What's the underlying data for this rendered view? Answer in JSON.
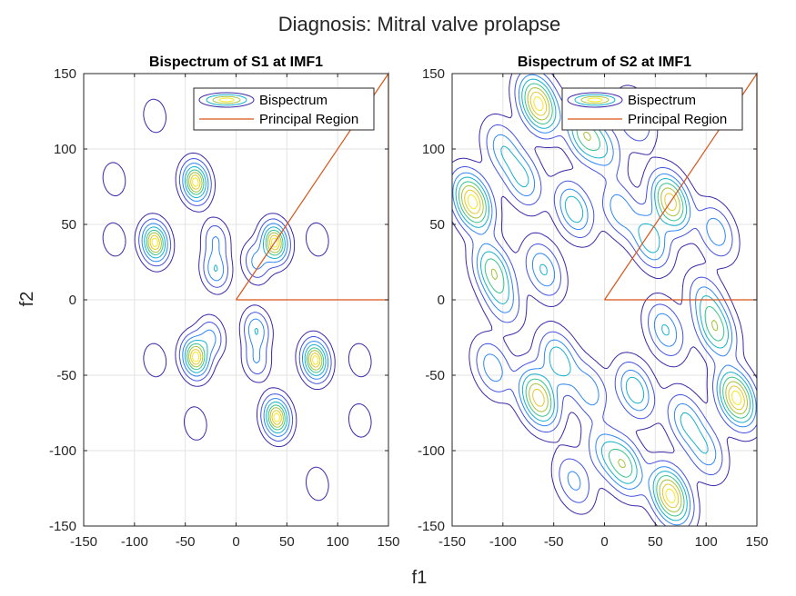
{
  "figure": {
    "suptitle": "Diagnosis: Mitral valve prolapse",
    "xlabel": "f1",
    "ylabel": "f2"
  },
  "chart_data": [
    {
      "type": "contour",
      "title": "Bispectrum of S1 at IMF1",
      "xlim": [
        -150,
        150
      ],
      "ylim": [
        -150,
        150
      ],
      "xticks": [
        -150,
        -100,
        -50,
        0,
        50,
        100,
        150
      ],
      "yticks": [
        -150,
        -100,
        -50,
        0,
        50,
        100,
        150
      ],
      "grid": true,
      "legend": {
        "placement": "top-right",
        "entries": [
          "Bispectrum",
          "Principal Region"
        ]
      },
      "principal_region": [
        [
          0,
          0
        ],
        [
          150,
          150
        ],
        [
          150,
          0
        ],
        [
          0,
          0
        ]
      ],
      "peaks": [
        {
          "x": -40,
          "y": 78,
          "a": 1.0
        },
        {
          "x": -80,
          "y": 38,
          "a": 1.0
        },
        {
          "x": 38,
          "y": 38,
          "a": 1.0
        },
        {
          "x": -40,
          "y": -38,
          "a": 1.0
        },
        {
          "x": 78,
          "y": -40,
          "a": 1.0
        },
        {
          "x": 40,
          "y": -78,
          "a": 1.0
        },
        {
          "x": -20,
          "y": 20,
          "a": 0.45
        },
        {
          "x": 20,
          "y": -20,
          "a": 0.45
        },
        {
          "x": 20,
          "y": 25,
          "a": 0.35
        },
        {
          "x": -25,
          "y": -25,
          "a": 0.35
        },
        {
          "x": -20,
          "y": 40,
          "a": 0.3
        },
        {
          "x": 20,
          "y": -40,
          "a": 0.3
        },
        {
          "x": -120,
          "y": 80,
          "a": 0.15
        },
        {
          "x": -120,
          "y": 40,
          "a": 0.15
        },
        {
          "x": -80,
          "y": 122,
          "a": 0.15
        },
        {
          "x": 80,
          "y": 40,
          "a": 0.15
        },
        {
          "x": 122,
          "y": -40,
          "a": 0.15
        },
        {
          "x": 122,
          "y": -80,
          "a": 0.15
        },
        {
          "x": 80,
          "y": -122,
          "a": 0.15
        },
        {
          "x": -80,
          "y": -40,
          "a": 0.15
        },
        {
          "x": -40,
          "y": -82,
          "a": 0.15
        }
      ]
    },
    {
      "type": "contour",
      "title": "Bispectrum of S2 at IMF1",
      "xlim": [
        -150,
        150
      ],
      "ylim": [
        -150,
        150
      ],
      "xticks": [
        -150,
        -100,
        -50,
        0,
        50,
        100,
        150
      ],
      "yticks": [
        -150,
        -100,
        -50,
        0,
        50,
        100,
        150
      ],
      "grid": true,
      "legend": {
        "placement": "top-right",
        "entries": [
          "Bispectrum",
          "Principal Region"
        ]
      },
      "principal_region": [
        [
          0,
          0
        ],
        [
          150,
          150
        ],
        [
          150,
          0
        ],
        [
          0,
          0
        ]
      ],
      "peaks": [
        {
          "x": -65,
          "y": 130,
          "a": 1.0
        },
        {
          "x": 65,
          "y": -130,
          "a": 1.0
        },
        {
          "x": -130,
          "y": 65,
          "a": 1.0
        },
        {
          "x": 130,
          "y": -65,
          "a": 1.0
        },
        {
          "x": 65,
          "y": 65,
          "a": 0.9
        },
        {
          "x": -65,
          "y": -65,
          "a": 0.9
        },
        {
          "x": -110,
          "y": 20,
          "a": 0.6
        },
        {
          "x": 110,
          "y": -20,
          "a": 0.6
        },
        {
          "x": 20,
          "y": -110,
          "a": 0.6
        },
        {
          "x": -20,
          "y": 110,
          "a": 0.6
        },
        {
          "x": 45,
          "y": 40,
          "a": 0.5
        },
        {
          "x": -45,
          "y": -40,
          "a": 0.5
        },
        {
          "x": -30,
          "y": 60,
          "a": 0.5
        },
        {
          "x": 30,
          "y": -60,
          "a": 0.5
        },
        {
          "x": -100,
          "y": 100,
          "a": 0.35
        },
        {
          "x": 100,
          "y": -100,
          "a": 0.35
        },
        {
          "x": 30,
          "y": 120,
          "a": 0.3
        },
        {
          "x": -30,
          "y": -120,
          "a": 0.3
        },
        {
          "x": 110,
          "y": 45,
          "a": 0.35
        },
        {
          "x": -110,
          "y": -45,
          "a": 0.35
        },
        {
          "x": -60,
          "y": 20,
          "a": 0.4
        },
        {
          "x": 60,
          "y": -20,
          "a": 0.4
        },
        {
          "x": 15,
          "y": 60,
          "a": 0.35
        },
        {
          "x": -15,
          "y": -60,
          "a": 0.35
        },
        {
          "x": 100,
          "y": 0,
          "a": 0.3
        },
        {
          "x": -100,
          "y": 0,
          "a": 0.3
        },
        {
          "x": 0,
          "y": 100,
          "a": 0.3
        },
        {
          "x": 0,
          "y": -100,
          "a": 0.3
        },
        {
          "x": -80,
          "y": 80,
          "a": 0.4
        },
        {
          "x": 80,
          "y": -80,
          "a": 0.4
        }
      ]
    }
  ],
  "colors": {
    "levels": [
      "#3e26a8",
      "#4352e0",
      "#2e87f5",
      "#14b1cf",
      "#36c48a",
      "#a6c23a",
      "#e8c52a",
      "#f7e81f"
    ],
    "principal_region": "#d95319",
    "grid": "#e3e3e3",
    "axis": "#262626"
  }
}
